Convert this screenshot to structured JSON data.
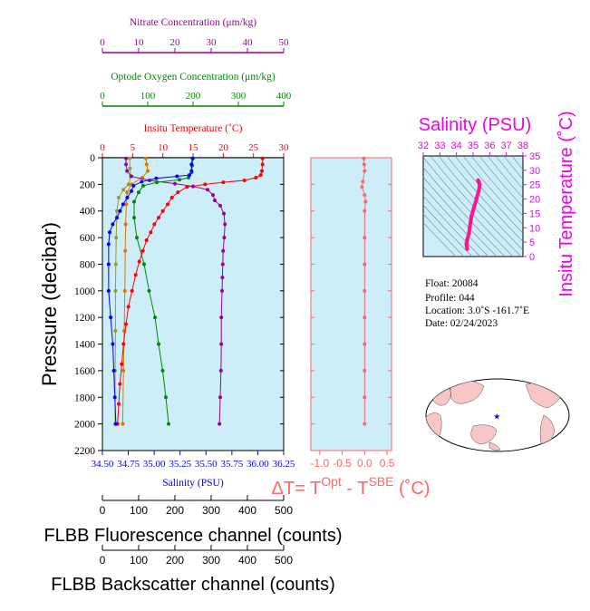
{
  "colors": {
    "temperature": "#ff0000",
    "salinity": "#0000ff",
    "oxygen": "#008800",
    "nitrate": "#990099",
    "fluorescence": "#dd7700",
    "backscatter": "#999933",
    "delta": "#ff6666",
    "ts_title": "#ee00ee",
    "ts_curve": "#ff1493",
    "plot_bg": "#cdeef8",
    "land": "#f9c6c6",
    "float_marker": "#0000ff"
  },
  "main_panel": {
    "ylabel": "Pressure (decibar)",
    "yticks": [
      "0",
      "200",
      "400",
      "600",
      "800",
      "1000",
      "1200",
      "1400",
      "1600",
      "1800",
      "2000",
      "2200"
    ],
    "ylim": [
      0,
      2200
    ]
  },
  "axes": {
    "nitrate": {
      "title": "Nitrate Concentration (μm/kg)",
      "ticks": [
        "0",
        "10",
        "20",
        "30",
        "40",
        "50"
      ]
    },
    "oxygen": {
      "title": "Optode Oxygen Concentration (μm/kg)",
      "ticks": [
        "0",
        "100",
        "200",
        "300",
        "400"
      ]
    },
    "temperature": {
      "title": "Insitu Temperature (˚C)",
      "ticks": [
        "0",
        "5",
        "10",
        "15",
        "20",
        "25",
        "30"
      ]
    },
    "salinity": {
      "title": "Salinity (PSU)",
      "ticks": [
        "34.50",
        "34.75",
        "35.00",
        "35.25",
        "35.50",
        "35.75",
        "36.00",
        "36.25"
      ]
    },
    "fluorescence": {
      "title": "FLBB Fluorescence channel (counts)",
      "ticks": [
        "0",
        "100",
        "200",
        "300",
        "400",
        "500"
      ]
    },
    "backscatter": {
      "title": "FLBB Backscatter channel (counts)",
      "ticks": [
        "0",
        "100",
        "200",
        "300",
        "400",
        "500"
      ]
    }
  },
  "delta_panel": {
    "title_prefix": "ΔT= T",
    "title_sup1": "Opt",
    "title_mid": " - T",
    "title_sup2": "SBE",
    "title_suffix": " (˚C)",
    "ticks": [
      "-1.0",
      "-0.5",
      "0.0",
      "0.5"
    ]
  },
  "ts_panel": {
    "title": "Salinity (PSU)",
    "ylabel": "Insitu Temperature (˚C)",
    "xticks": [
      "32",
      "33",
      "34",
      "35",
      "36",
      "37",
      "38"
    ],
    "yticks": [
      "0",
      "5",
      "10",
      "15",
      "20",
      "25",
      "30",
      "35"
    ]
  },
  "info": {
    "float": "Float:  20084",
    "profile": "Profile:  044",
    "location": "Location:  3.0˚S  -161.7˚E",
    "date": "Date:  02/24/2023"
  },
  "chart_data": [
    {
      "type": "line",
      "name": "Temperature",
      "x_units": "˚C",
      "y_units": "decibar",
      "points": [
        [
          26.5,
          5
        ],
        [
          26.5,
          50
        ],
        [
          26.4,
          100
        ],
        [
          26.2,
          130
        ],
        [
          25.4,
          150
        ],
        [
          23.5,
          170
        ],
        [
          20,
          185
        ],
        [
          17,
          200
        ],
        [
          14,
          220
        ],
        [
          12.5,
          260
        ],
        [
          11.5,
          300
        ],
        [
          10.8,
          350
        ],
        [
          10,
          400
        ],
        [
          9.3,
          450
        ],
        [
          8.6,
          500
        ],
        [
          8,
          560
        ],
        [
          7.3,
          620
        ],
        [
          6.7,
          700
        ],
        [
          6.1,
          780
        ],
        [
          5.5,
          880
        ],
        [
          4.9,
          1000
        ],
        [
          4.3,
          1120
        ],
        [
          3.9,
          1250
        ],
        [
          3.5,
          1400
        ],
        [
          3.2,
          1550
        ],
        [
          2.9,
          1700
        ],
        [
          2.7,
          1850
        ],
        [
          2.5,
          2000
        ]
      ]
    },
    {
      "type": "line",
      "name": "Salinity",
      "x_units": "PSU",
      "y_units": "decibar",
      "points": [
        [
          35.37,
          5
        ],
        [
          35.36,
          50
        ],
        [
          35.36,
          100
        ],
        [
          35.34,
          130
        ],
        [
          35.22,
          140
        ],
        [
          35.02,
          155
        ],
        [
          34.88,
          180
        ],
        [
          34.8,
          210
        ],
        [
          34.78,
          250
        ],
        [
          34.74,
          300
        ],
        [
          34.7,
          350
        ],
        [
          34.67,
          400
        ],
        [
          34.64,
          450
        ],
        [
          34.6,
          500
        ],
        [
          34.57,
          560
        ],
        [
          34.56,
          650
        ],
        [
          34.56,
          800
        ],
        [
          34.56,
          1000
        ],
        [
          34.58,
          1200
        ],
        [
          34.6,
          1400
        ],
        [
          34.61,
          1600
        ],
        [
          34.62,
          1800
        ],
        [
          34.63,
          2000
        ]
      ]
    },
    {
      "type": "line",
      "name": "Optode Oxygen",
      "x_units": "μm/kg",
      "y_units": "decibar",
      "points": [
        [
          200,
          5
        ],
        [
          198,
          60
        ],
        [
          197,
          110
        ],
        [
          190,
          150
        ],
        [
          170,
          165
        ],
        [
          120,
          185
        ],
        [
          90,
          210
        ],
        [
          80,
          260
        ],
        [
          70,
          330
        ],
        [
          70,
          450
        ],
        [
          76,
          600
        ],
        [
          92,
          800
        ],
        [
          103,
          1000
        ],
        [
          116,
          1200
        ],
        [
          124,
          1400
        ],
        [
          133,
          1600
        ],
        [
          140,
          1800
        ],
        [
          146,
          2000
        ]
      ]
    },
    {
      "type": "line",
      "name": "Nitrate",
      "x_units": "μm/kg",
      "y_units": "decibar",
      "points": [
        [
          6.5,
          5
        ],
        [
          6.5,
          50
        ],
        [
          6.8,
          100
        ],
        [
          8,
          140
        ],
        [
          13,
          170
        ],
        [
          20,
          195
        ],
        [
          25,
          215
        ],
        [
          29,
          240
        ],
        [
          30.5,
          280
        ],
        [
          31,
          320
        ],
        [
          32.5,
          360
        ],
        [
          33.5,
          420
        ],
        [
          33.8,
          500
        ],
        [
          33.6,
          600
        ],
        [
          33.3,
          700
        ],
        [
          33.2,
          800
        ],
        [
          33.1,
          900
        ],
        [
          33,
          1000
        ],
        [
          32.8,
          1200
        ],
        [
          32.8,
          1400
        ],
        [
          32.7,
          1600
        ],
        [
          32.5,
          1800
        ],
        [
          32.3,
          2000
        ]
      ]
    },
    {
      "type": "line",
      "name": "FLBB Fluorescence",
      "x_units": "counts",
      "y_units": "decibar",
      "points": [
        [
          120,
          5
        ],
        [
          122,
          50
        ],
        [
          125,
          100
        ],
        [
          110,
          150
        ],
        [
          80,
          200
        ],
        [
          68,
          260
        ],
        [
          66,
          350
        ],
        [
          64,
          500
        ],
        [
          63,
          700
        ],
        [
          62,
          1000
        ],
        [
          60,
          1300
        ],
        [
          58,
          1600
        ],
        [
          56,
          2000
        ]
      ]
    },
    {
      "type": "line",
      "name": "FLBB Backscatter",
      "x_units": "counts",
      "y_units": "decibar",
      "points": [
        [
          75,
          5
        ],
        [
          76,
          80
        ],
        [
          78,
          140
        ],
        [
          72,
          200
        ],
        [
          58,
          240
        ],
        [
          45,
          300
        ],
        [
          40,
          400
        ],
        [
          38,
          600
        ],
        [
          37,
          800
        ],
        [
          36,
          1000
        ],
        [
          36,
          1300
        ],
        [
          35,
          1600
        ],
        [
          35,
          2000
        ]
      ]
    },
    {
      "type": "line",
      "name": "ΔT",
      "x_units": "˚C",
      "y_units": "decibar",
      "points": [
        [
          -0.02,
          5
        ],
        [
          -0.01,
          50
        ],
        [
          0,
          100
        ],
        [
          -0.04,
          180
        ],
        [
          -0.06,
          220
        ],
        [
          0,
          280
        ],
        [
          0.02,
          330
        ],
        [
          0,
          400
        ],
        [
          0,
          600
        ],
        [
          0,
          800
        ],
        [
          0,
          1000
        ],
        [
          0,
          1200
        ],
        [
          0,
          1400
        ],
        [
          0,
          1600
        ],
        [
          0,
          1800
        ],
        [
          0,
          2000
        ]
      ]
    },
    {
      "type": "scatter",
      "name": "T-S diagram",
      "x_units": "PSU",
      "y_units": "˚C",
      "points": [
        [
          35.3,
          26.5
        ],
        [
          35.35,
          26
        ],
        [
          35.4,
          25
        ],
        [
          35.35,
          23
        ],
        [
          35.2,
          20
        ],
        [
          35.05,
          17
        ],
        [
          34.9,
          14
        ],
        [
          34.85,
          12
        ],
        [
          34.8,
          10
        ],
        [
          34.75,
          8
        ],
        [
          34.65,
          6
        ],
        [
          34.6,
          4.5
        ],
        [
          34.62,
          3.5
        ],
        [
          34.64,
          2.6
        ]
      ]
    },
    {
      "type": "map",
      "name": "Float location",
      "lat": -3.0,
      "lon": -161.7
    }
  ]
}
